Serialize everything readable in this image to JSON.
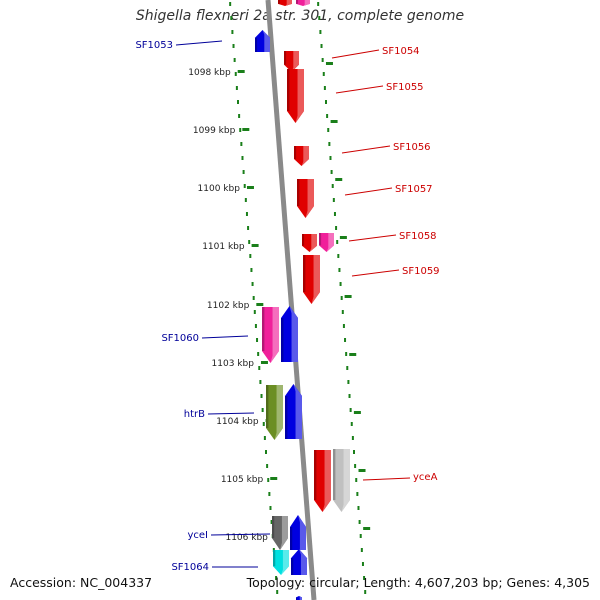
{
  "title": "Shigella flexneri 2a str. 301, complete genome",
  "accession": "Accession: NC_004337",
  "topology": "Topology: circular; Length: 4,607,203 bp; Genes: 4,305",
  "colors": {
    "forward": "#e00000",
    "reverse": "#0000e0",
    "pink": "#f0209a",
    "olive": "#6b8e23",
    "gray_light": "#c0c0c0",
    "gray_dark": "#666666",
    "cyan": "#00e0e0",
    "ruler": "#1a7f1a",
    "backbone": "#8a8a8a",
    "label_forward": "#cc0000",
    "label_reverse": "#000099"
  },
  "ruler": {
    "labels": [
      "1098 kbp",
      "1099 kbp",
      "1100 kbp",
      "1101 kbp",
      "1102 kbp",
      "1103 kbp",
      "1104 kbp",
      "1105 kbp",
      "1106 kbp"
    ]
  },
  "gene_labels": {
    "forward": [
      "SF1054",
      "SF1055",
      "SF1056",
      "SF1057",
      "SF1058",
      "SF1059",
      "yceA"
    ],
    "reverse": [
      "SF1053",
      "SF1060",
      "htrB",
      "yceI",
      "SF1064"
    ]
  }
}
